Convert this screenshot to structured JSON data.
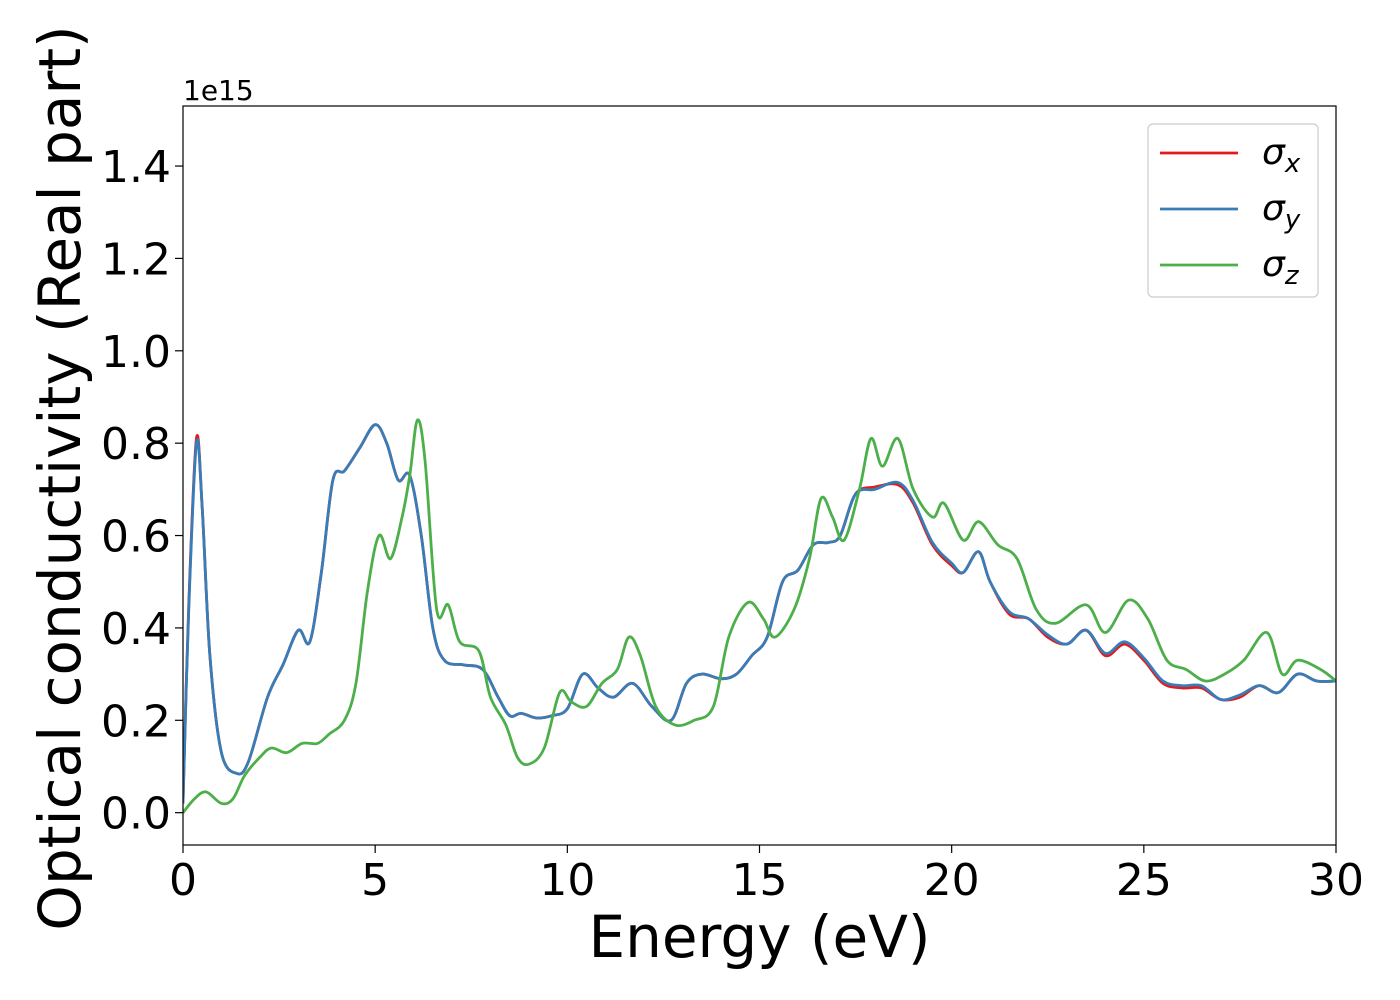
{
  "chart_data": {
    "type": "line",
    "xlabel": "Energy (eV)",
    "ylabel": "Optical conductivity (Real part)",
    "offset_text": "1e15",
    "xlim": [
      0,
      30
    ],
    "ylim": [
      -0.07,
      1.53
    ],
    "x_ticks": [
      0,
      5,
      10,
      15,
      20,
      25,
      30
    ],
    "x_tick_labels": [
      "0",
      "5",
      "10",
      "15",
      "20",
      "25",
      "30"
    ],
    "y_ticks": [
      0.0,
      0.2,
      0.4,
      0.6,
      0.8,
      1.0,
      1.2,
      1.4
    ],
    "y_tick_labels": [
      "0.0",
      "0.2",
      "0.4",
      "0.6",
      "0.8",
      "1.0",
      "1.2",
      "1.4"
    ],
    "grid": false,
    "legend_position": "top-right",
    "series": [
      {
        "name": "σ_x",
        "color": "#e41a1c",
        "points": [
          [
            0,
            0.02
          ],
          [
            0.15,
            0.45
          ],
          [
            0.35,
            0.81
          ],
          [
            0.5,
            0.66
          ],
          [
            0.7,
            0.34
          ],
          [
            1.0,
            0.13
          ],
          [
            1.4,
            0.085
          ],
          [
            1.7,
            0.11
          ],
          [
            2.2,
            0.25
          ],
          [
            2.6,
            0.32
          ],
          [
            3.0,
            0.395
          ],
          [
            3.3,
            0.37
          ],
          [
            3.6,
            0.52
          ],
          [
            3.9,
            0.72
          ],
          [
            4.2,
            0.74
          ],
          [
            4.6,
            0.79
          ],
          [
            5.0,
            0.84
          ],
          [
            5.3,
            0.8
          ],
          [
            5.6,
            0.72
          ],
          [
            5.9,
            0.73
          ],
          [
            6.2,
            0.6
          ],
          [
            6.5,
            0.4
          ],
          [
            6.8,
            0.33
          ],
          [
            7.3,
            0.32
          ],
          [
            7.8,
            0.31
          ],
          [
            8.2,
            0.25
          ],
          [
            8.5,
            0.21
          ],
          [
            8.8,
            0.215
          ],
          [
            9.2,
            0.205
          ],
          [
            9.6,
            0.21
          ],
          [
            10.0,
            0.225
          ],
          [
            10.4,
            0.3
          ],
          [
            10.8,
            0.27
          ],
          [
            11.2,
            0.25
          ],
          [
            11.7,
            0.28
          ],
          [
            12.2,
            0.23
          ],
          [
            12.7,
            0.2
          ],
          [
            13.1,
            0.28
          ],
          [
            13.5,
            0.3
          ],
          [
            14.0,
            0.29
          ],
          [
            14.4,
            0.3
          ],
          [
            14.8,
            0.34
          ],
          [
            15.2,
            0.38
          ],
          [
            15.6,
            0.5
          ],
          [
            16.0,
            0.525
          ],
          [
            16.4,
            0.58
          ],
          [
            16.8,
            0.585
          ],
          [
            17.1,
            0.6
          ],
          [
            17.5,
            0.69
          ],
          [
            18.0,
            0.705
          ],
          [
            18.6,
            0.71
          ],
          [
            19.0,
            0.67
          ],
          [
            19.5,
            0.58
          ],
          [
            20.0,
            0.535
          ],
          [
            20.3,
            0.52
          ],
          [
            20.7,
            0.565
          ],
          [
            21.0,
            0.5
          ],
          [
            21.5,
            0.43
          ],
          [
            22.0,
            0.42
          ],
          [
            22.5,
            0.38
          ],
          [
            23.0,
            0.365
          ],
          [
            23.5,
            0.395
          ],
          [
            24.0,
            0.34
          ],
          [
            24.5,
            0.365
          ],
          [
            25.0,
            0.33
          ],
          [
            25.5,
            0.28
          ],
          [
            26.0,
            0.27
          ],
          [
            26.5,
            0.27
          ],
          [
            27.0,
            0.245
          ],
          [
            27.5,
            0.25
          ],
          [
            28.0,
            0.275
          ],
          [
            28.5,
            0.26
          ],
          [
            29.0,
            0.3
          ],
          [
            29.5,
            0.285
          ],
          [
            30.0,
            0.285
          ]
        ]
      },
      {
        "name": "σ_y",
        "color": "#377eb8",
        "points": [
          [
            0,
            0.02
          ],
          [
            0.15,
            0.44
          ],
          [
            0.35,
            0.8
          ],
          [
            0.5,
            0.66
          ],
          [
            0.7,
            0.34
          ],
          [
            1.0,
            0.13
          ],
          [
            1.4,
            0.085
          ],
          [
            1.7,
            0.11
          ],
          [
            2.2,
            0.25
          ],
          [
            2.6,
            0.32
          ],
          [
            3.0,
            0.395
          ],
          [
            3.3,
            0.37
          ],
          [
            3.6,
            0.52
          ],
          [
            3.9,
            0.72
          ],
          [
            4.2,
            0.74
          ],
          [
            4.6,
            0.79
          ],
          [
            5.0,
            0.84
          ],
          [
            5.3,
            0.8
          ],
          [
            5.6,
            0.72
          ],
          [
            5.9,
            0.73
          ],
          [
            6.2,
            0.6
          ],
          [
            6.5,
            0.4
          ],
          [
            6.8,
            0.33
          ],
          [
            7.3,
            0.32
          ],
          [
            7.8,
            0.31
          ],
          [
            8.2,
            0.25
          ],
          [
            8.5,
            0.21
          ],
          [
            8.8,
            0.215
          ],
          [
            9.2,
            0.205
          ],
          [
            9.6,
            0.21
          ],
          [
            10.0,
            0.225
          ],
          [
            10.4,
            0.3
          ],
          [
            10.8,
            0.27
          ],
          [
            11.2,
            0.25
          ],
          [
            11.7,
            0.28
          ],
          [
            12.2,
            0.23
          ],
          [
            12.7,
            0.2
          ],
          [
            13.1,
            0.28
          ],
          [
            13.5,
            0.3
          ],
          [
            14.0,
            0.29
          ],
          [
            14.4,
            0.3
          ],
          [
            14.8,
            0.34
          ],
          [
            15.2,
            0.38
          ],
          [
            15.6,
            0.5
          ],
          [
            16.0,
            0.525
          ],
          [
            16.4,
            0.58
          ],
          [
            16.8,
            0.585
          ],
          [
            17.1,
            0.6
          ],
          [
            17.5,
            0.69
          ],
          [
            18.0,
            0.7
          ],
          [
            18.6,
            0.715
          ],
          [
            19.0,
            0.675
          ],
          [
            19.5,
            0.585
          ],
          [
            20.0,
            0.54
          ],
          [
            20.3,
            0.52
          ],
          [
            20.7,
            0.565
          ],
          [
            21.0,
            0.5
          ],
          [
            21.5,
            0.435
          ],
          [
            22.0,
            0.42
          ],
          [
            22.5,
            0.385
          ],
          [
            23.0,
            0.365
          ],
          [
            23.5,
            0.395
          ],
          [
            24.0,
            0.345
          ],
          [
            24.5,
            0.37
          ],
          [
            25.0,
            0.335
          ],
          [
            25.5,
            0.285
          ],
          [
            26.0,
            0.275
          ],
          [
            26.5,
            0.275
          ],
          [
            27.0,
            0.245
          ],
          [
            27.5,
            0.255
          ],
          [
            28.0,
            0.275
          ],
          [
            28.5,
            0.26
          ],
          [
            29.0,
            0.3
          ],
          [
            29.5,
            0.285
          ],
          [
            30.0,
            0.285
          ]
        ]
      },
      {
        "name": "σ_z",
        "color": "#4daf4a",
        "points": [
          [
            0,
            0.0
          ],
          [
            0.3,
            0.03
          ],
          [
            0.6,
            0.045
          ],
          [
            1.0,
            0.02
          ],
          [
            1.3,
            0.03
          ],
          [
            1.6,
            0.08
          ],
          [
            2.0,
            0.12
          ],
          [
            2.3,
            0.14
          ],
          [
            2.7,
            0.13
          ],
          [
            3.1,
            0.15
          ],
          [
            3.5,
            0.15
          ],
          [
            3.8,
            0.17
          ],
          [
            4.2,
            0.2
          ],
          [
            4.5,
            0.28
          ],
          [
            4.8,
            0.48
          ],
          [
            5.1,
            0.6
          ],
          [
            5.4,
            0.55
          ],
          [
            5.7,
            0.64
          ],
          [
            5.9,
            0.73
          ],
          [
            6.1,
            0.85
          ],
          [
            6.3,
            0.76
          ],
          [
            6.6,
            0.44
          ],
          [
            6.9,
            0.45
          ],
          [
            7.2,
            0.37
          ],
          [
            7.7,
            0.35
          ],
          [
            8.0,
            0.25
          ],
          [
            8.4,
            0.19
          ],
          [
            8.7,
            0.12
          ],
          [
            9.0,
            0.105
          ],
          [
            9.4,
            0.14
          ],
          [
            9.8,
            0.26
          ],
          [
            10.1,
            0.24
          ],
          [
            10.5,
            0.23
          ],
          [
            10.9,
            0.28
          ],
          [
            11.3,
            0.31
          ],
          [
            11.6,
            0.38
          ],
          [
            11.9,
            0.34
          ],
          [
            12.3,
            0.23
          ],
          [
            12.8,
            0.19
          ],
          [
            13.3,
            0.2
          ],
          [
            13.8,
            0.23
          ],
          [
            14.2,
            0.38
          ],
          [
            14.7,
            0.455
          ],
          [
            15.1,
            0.42
          ],
          [
            15.4,
            0.38
          ],
          [
            15.9,
            0.44
          ],
          [
            16.3,
            0.55
          ],
          [
            16.6,
            0.68
          ],
          [
            16.9,
            0.64
          ],
          [
            17.2,
            0.59
          ],
          [
            17.6,
            0.7
          ],
          [
            17.9,
            0.81
          ],
          [
            18.2,
            0.75
          ],
          [
            18.6,
            0.81
          ],
          [
            19.0,
            0.7
          ],
          [
            19.5,
            0.64
          ],
          [
            19.8,
            0.67
          ],
          [
            20.3,
            0.59
          ],
          [
            20.7,
            0.63
          ],
          [
            21.2,
            0.58
          ],
          [
            21.7,
            0.55
          ],
          [
            22.2,
            0.44
          ],
          [
            22.7,
            0.41
          ],
          [
            23.5,
            0.45
          ],
          [
            24.0,
            0.39
          ],
          [
            24.6,
            0.46
          ],
          [
            25.1,
            0.42
          ],
          [
            25.6,
            0.33
          ],
          [
            26.1,
            0.31
          ],
          [
            26.6,
            0.285
          ],
          [
            27.1,
            0.3
          ],
          [
            27.6,
            0.33
          ],
          [
            28.2,
            0.39
          ],
          [
            28.6,
            0.3
          ],
          [
            29.0,
            0.33
          ],
          [
            29.6,
            0.31
          ],
          [
            30.0,
            0.285
          ]
        ]
      }
    ]
  }
}
